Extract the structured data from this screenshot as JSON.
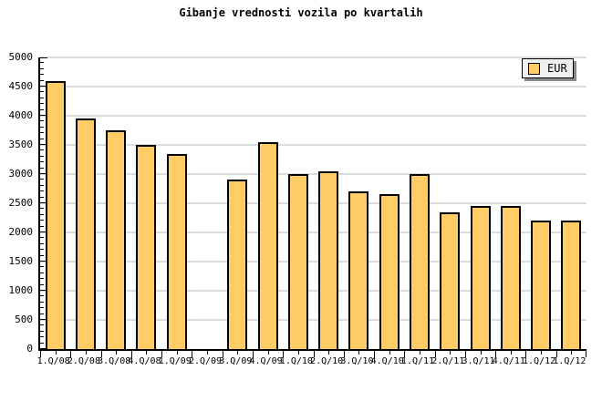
{
  "title": "Gibanje vrednosti vozila po kvartalih",
  "legend": {
    "label": "EUR",
    "swatch_color": "#FFCC66"
  },
  "chart_data": {
    "type": "bar",
    "title": "Gibanje vrednosti vozila po kvartalih",
    "categories": [
      "1.Q/08",
      "2.Q/08",
      "3.Q/08",
      "4.Q/08",
      "1.Q/09",
      "2.Q/09",
      "3.Q/09",
      "4.Q/09",
      "1.Q/10",
      "2.Q/10",
      "3.Q/10",
      "4.Q/10",
      "1.Q/11",
      "2.Q/11",
      "3.Q/11",
      "4.Q/11",
      "1.Q/12",
      "1.Q/12"
    ],
    "series": [
      {
        "name": "EUR",
        "values": [
          4600,
          3950,
          3750,
          3500,
          3350,
          0,
          2900,
          3550,
          3000,
          3050,
          2700,
          2650,
          3000,
          2350,
          2450,
          2450,
          2200,
          2200
        ]
      }
    ],
    "xlabel": "",
    "ylabel": "",
    "ylim": [
      0,
      5000
    ],
    "yticks": [
      0,
      500,
      1000,
      1500,
      2000,
      2500,
      3000,
      3500,
      4000,
      4500,
      5000
    ],
    "minor_tick_step": 100,
    "grid": "horizontal",
    "grid_color": "#DCDCDC",
    "legend_position": "top-right",
    "bar_color": "#FFCC66",
    "bar_border_color": "#000000",
    "background_color": "#FFFFFF"
  }
}
